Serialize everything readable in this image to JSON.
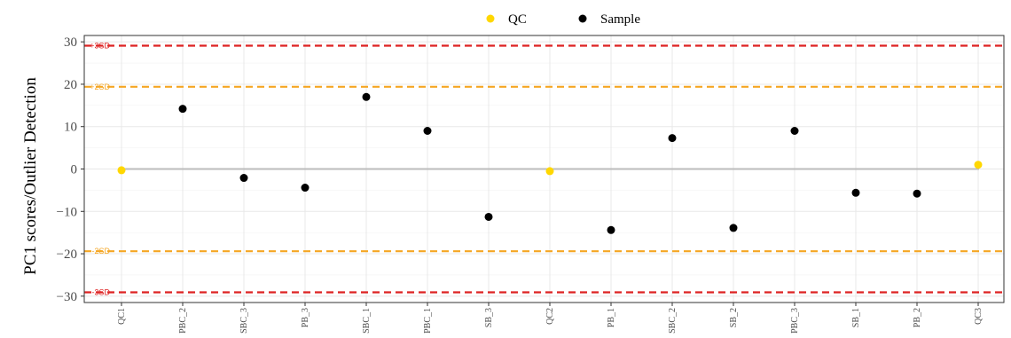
{
  "chart_data": {
    "type": "scatter",
    "title": "",
    "xlabel": "",
    "ylabel": "PC1 scores/Outlier Detection",
    "ylim": [
      -31.5,
      31.5
    ],
    "yticks": [
      -30,
      -20,
      -10,
      0,
      10,
      20,
      30
    ],
    "yticks_labels": [
      "−30",
      "−20",
      "−10",
      "0",
      "10",
      "20",
      "30"
    ],
    "grid": true,
    "legend_position": "top",
    "categories": [
      "QC1",
      "PBC_2",
      "SBC_3",
      "PB_3",
      "SBC_1",
      "PBC_1",
      "SB_3",
      "QC2",
      "PB_1",
      "SBC_2",
      "SB_2",
      "PBC_3",
      "SB_1",
      "PB_2",
      "QC3"
    ],
    "series": [
      {
        "name": "QC",
        "color": "#FFD700",
        "points": [
          {
            "x": "QC1",
            "y": -0.3
          },
          {
            "x": "QC2",
            "y": -0.5
          },
          {
            "x": "QC3",
            "y": 1.0
          }
        ]
      },
      {
        "name": "Sample",
        "color": "#000000",
        "points": [
          {
            "x": "PBC_2",
            "y": 14.2
          },
          {
            "x": "SBC_3",
            "y": -2.1
          },
          {
            "x": "PB_3",
            "y": -4.4
          },
          {
            "x": "SBC_1",
            "y": 17.0
          },
          {
            "x": "PBC_1",
            "y": 9.0
          },
          {
            "x": "SB_3",
            "y": -11.3
          },
          {
            "x": "PB_1",
            "y": -14.4
          },
          {
            "x": "SBC_2",
            "y": 7.3
          },
          {
            "x": "SB_2",
            "y": -13.9
          },
          {
            "x": "PBC_3",
            "y": 9.0
          },
          {
            "x": "SB_1",
            "y": -5.6
          },
          {
            "x": "PB_2",
            "y": -5.8
          }
        ]
      }
    ],
    "reference_lines": [
      {
        "label": "+3SD",
        "y": 29.1,
        "color": "#DD2222"
      },
      {
        "label": "+2SD",
        "y": 19.4,
        "color": "#F5A623"
      },
      {
        "label": "",
        "y": 0,
        "color": "#BBBBBB"
      },
      {
        "label": "-2SD",
        "y": -19.4,
        "color": "#F5A623"
      },
      {
        "label": "-3SD",
        "y": -29.1,
        "color": "#DD2222"
      }
    ]
  }
}
